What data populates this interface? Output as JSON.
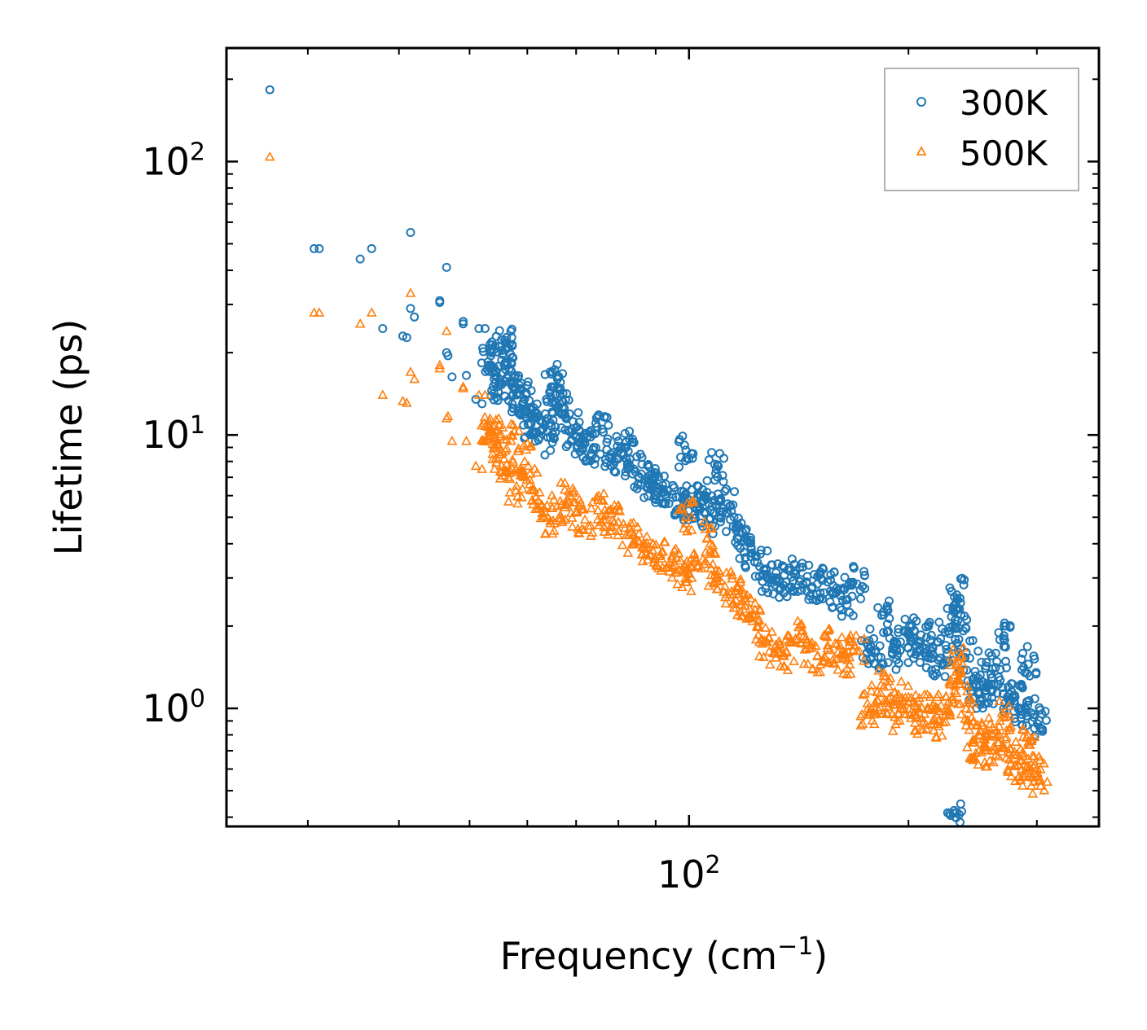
{
  "chart_data": {
    "type": "scatter",
    "title": "",
    "xlabel": {
      "base": "Frequency (cm",
      "exponent": "−1",
      "suffix": ")"
    },
    "ylabel": "Lifetime (ps)",
    "x_scale": "log",
    "y_scale": "log",
    "xlim": [
      23.2,
      365
    ],
    "ylim": [
      0.37,
      260
    ],
    "grid": false,
    "legend_position": "top-right",
    "x_ticks": [
      {
        "value": 100,
        "base": "10",
        "exp": "2"
      }
    ],
    "y_ticks": [
      {
        "value": 1,
        "base": "10",
        "exp": "0"
      },
      {
        "value": 10,
        "base": "10",
        "exp": "1"
      },
      {
        "value": 100,
        "base": "10",
        "exp": "2"
      }
    ],
    "colors": {
      "300K": "#1f77b4",
      "500K": "#ff7f0e",
      "axes": "#000000",
      "legend_border": "#999999"
    },
    "series": [
      {
        "name": "300K",
        "marker": "circle",
        "points": [
          [
            26.6,
            183
          ],
          [
            30.6,
            48
          ],
          [
            31.1,
            48
          ],
          [
            35.4,
            44
          ],
          [
            36.7,
            48
          ],
          [
            38.0,
            24.5
          ],
          [
            40.5,
            23
          ],
          [
            41.0,
            22.7
          ],
          [
            41.5,
            55
          ],
          [
            41.5,
            29
          ],
          [
            42.0,
            27
          ],
          [
            45.5,
            31
          ],
          [
            45.5,
            30.5
          ],
          [
            46.5,
            41
          ],
          [
            46.5,
            20
          ],
          [
            46.7,
            19.5
          ],
          [
            47.3,
            16.3
          ],
          [
            49.0,
            26
          ],
          [
            49.0,
            25.5
          ],
          [
            49.5,
            16.5
          ],
          [
            51.5,
            24.5
          ],
          [
            52.5,
            24.5
          ],
          [
            51.0,
            13.5
          ],
          [
            52.0,
            13
          ],
          [
            53.0,
            18.5
          ],
          [
            53.5,
            18
          ],
          [
            54.2,
            15.5
          ],
          [
            55.0,
            21
          ],
          [
            56.5,
            16.5
          ],
          [
            56.7,
            21.5
          ],
          [
            57.0,
            15.5
          ],
          [
            58.0,
            14
          ],
          [
            58.5,
            12.5
          ],
          [
            59.5,
            13.5
          ],
          [
            60.5,
            11
          ],
          [
            61.5,
            11.5
          ],
          [
            63.0,
            10.5
          ],
          [
            64.0,
            9.8
          ],
          [
            65.0,
            15
          ],
          [
            66.0,
            16
          ],
          [
            66.5,
            13
          ],
          [
            67.5,
            12
          ],
          [
            69.0,
            10.5
          ],
          [
            70.0,
            9.8
          ],
          [
            72.0,
            9.3
          ],
          [
            74.0,
            9.0
          ],
          [
            76.0,
            10.5
          ],
          [
            78.0,
            8.5
          ],
          [
            80.0,
            8.2
          ],
          [
            82.0,
            9
          ],
          [
            84.0,
            7.5
          ],
          [
            86.0,
            7.2
          ],
          [
            88.0,
            6.8
          ],
          [
            90.0,
            6.5
          ],
          [
            92.0,
            6.2
          ],
          [
            95.0,
            5.9
          ],
          [
            98.0,
            5.8
          ],
          [
            99.0,
            8.8
          ],
          [
            100.0,
            5.6
          ],
          [
            103.0,
            5.5
          ],
          [
            105.0,
            6
          ],
          [
            107.0,
            5.3
          ],
          [
            109.0,
            7.5
          ],
          [
            110.0,
            5.0
          ],
          [
            113.0,
            5.6
          ],
          [
            116.0,
            4.6
          ],
          [
            119.0,
            4.1
          ],
          [
            122.0,
            3.7
          ],
          [
            125.0,
            3.3
          ],
          [
            128.0,
            3.0
          ],
          [
            132.0,
            3.0
          ],
          [
            136.0,
            2.9
          ],
          [
            140.0,
            3.1
          ],
          [
            145.0,
            2.9
          ],
          [
            150.0,
            2.85
          ],
          [
            155.0,
            2.9
          ],
          [
            160.0,
            2.7
          ],
          [
            165.0,
            2.5
          ],
          [
            170.0,
            2.85
          ],
          [
            176.0,
            1.7
          ],
          [
            180.0,
            1.6
          ],
          [
            185.0,
            2.2
          ],
          [
            190.0,
            1.6
          ],
          [
            195.0,
            1.75
          ],
          [
            200.0,
            1.9
          ],
          [
            205.0,
            1.7
          ],
          [
            210.0,
            1.6
          ],
          [
            215.0,
            1.85
          ],
          [
            220.0,
            1.5
          ],
          [
            225.0,
            1.7
          ],
          [
            230.0,
            2.0
          ],
          [
            233.0,
            2.6
          ],
          [
            236.0,
            2.2
          ],
          [
            240.0,
            1.6
          ],
          [
            245.0,
            1.2
          ],
          [
            250.0,
            1.15
          ],
          [
            255.0,
            1.4
          ],
          [
            260.0,
            1.15
          ],
          [
            266.0,
            1.3
          ],
          [
            270.0,
            1.8
          ],
          [
            275.0,
            1.05
          ],
          [
            280.0,
            1.1
          ],
          [
            286.0,
            1.0
          ],
          [
            292.0,
            1.45
          ],
          [
            297.0,
            0.95
          ],
          [
            303.0,
            0.85
          ],
          [
            232.0,
            0.4
          ]
        ]
      },
      {
        "name": "500K",
        "marker": "triangle",
        "points": [
          [
            26.6,
            104
          ],
          [
            30.6,
            28
          ],
          [
            31.1,
            28
          ],
          [
            35.4,
            25.5
          ],
          [
            36.7,
            28
          ],
          [
            38.0,
            14
          ],
          [
            40.5,
            13.3
          ],
          [
            41.0,
            13.1
          ],
          [
            41.5,
            33
          ],
          [
            41.5,
            17
          ],
          [
            42.0,
            16
          ],
          [
            45.5,
            18
          ],
          [
            45.5,
            17.5
          ],
          [
            46.5,
            24
          ],
          [
            46.5,
            11.5
          ],
          [
            46.7,
            11.7
          ],
          [
            47.3,
            9.5
          ],
          [
            49.0,
            15
          ],
          [
            49.0,
            14.8
          ],
          [
            49.5,
            9.5
          ],
          [
            51.5,
            14
          ],
          [
            52.5,
            14
          ],
          [
            51.0,
            7.7
          ],
          [
            52.0,
            7.5
          ],
          [
            53.0,
            10.7
          ],
          [
            53.5,
            10.4
          ],
          [
            54.2,
            9.8
          ],
          [
            55.0,
            8.5
          ],
          [
            56.5,
            7
          ],
          [
            57.0,
            9.5
          ],
          [
            58.0,
            6.5
          ],
          [
            59.5,
            8
          ],
          [
            60.5,
            6.6
          ],
          [
            62.0,
            5.5
          ],
          [
            64.0,
            5
          ],
          [
            66.0,
            5.5
          ],
          [
            68.0,
            5.8
          ],
          [
            70.0,
            5.2
          ],
          [
            72.0,
            4.9
          ],
          [
            75.0,
            5.3
          ],
          [
            78.0,
            4.6
          ],
          [
            80.0,
            4.8
          ],
          [
            82.0,
            4.3
          ],
          [
            85.0,
            4.1
          ],
          [
            88.0,
            3.9
          ],
          [
            91.0,
            3.6
          ],
          [
            94.0,
            3.4
          ],
          [
            97.0,
            3.2
          ],
          [
            99.0,
            5.0
          ],
          [
            100.0,
            3.1
          ],
          [
            103.0,
            3.3
          ],
          [
            106.0,
            4.2
          ],
          [
            109.0,
            3.0
          ],
          [
            112.0,
            2.8
          ],
          [
            115.0,
            2.6
          ],
          [
            118.0,
            2.4
          ],
          [
            121.0,
            2.2
          ],
          [
            124.0,
            2.0
          ],
          [
            128.0,
            1.75
          ],
          [
            132.0,
            1.65
          ],
          [
            136.0,
            1.6
          ],
          [
            140.0,
            1.8
          ],
          [
            145.0,
            1.65
          ],
          [
            150.0,
            1.55
          ],
          [
            155.0,
            1.7
          ],
          [
            160.0,
            1.6
          ],
          [
            165.0,
            1.5
          ],
          [
            170.0,
            1.62
          ],
          [
            176.0,
            1.0
          ],
          [
            180.0,
            1.05
          ],
          [
            185.0,
            1.2
          ],
          [
            190.0,
            0.95
          ],
          [
            195.0,
            1.0
          ],
          [
            200.0,
            1.1
          ],
          [
            205.0,
            0.95
          ],
          [
            210.0,
            0.9
          ],
          [
            215.0,
            1.0
          ],
          [
            220.0,
            0.9
          ],
          [
            225.0,
            0.95
          ],
          [
            230.0,
            1.1
          ],
          [
            233.0,
            1.45
          ],
          [
            236.0,
            1.35
          ],
          [
            240.0,
            1.0
          ],
          [
            245.0,
            0.75
          ],
          [
            250.0,
            0.7
          ],
          [
            255.0,
            0.8
          ],
          [
            260.0,
            0.7
          ],
          [
            266.0,
            0.75
          ],
          [
            270.0,
            0.95
          ],
          [
            275.0,
            0.65
          ],
          [
            280.0,
            0.62
          ],
          [
            286.0,
            0.6
          ],
          [
            292.0,
            0.75
          ],
          [
            297.0,
            0.58
          ],
          [
            303.0,
            0.55
          ]
        ]
      }
    ]
  }
}
